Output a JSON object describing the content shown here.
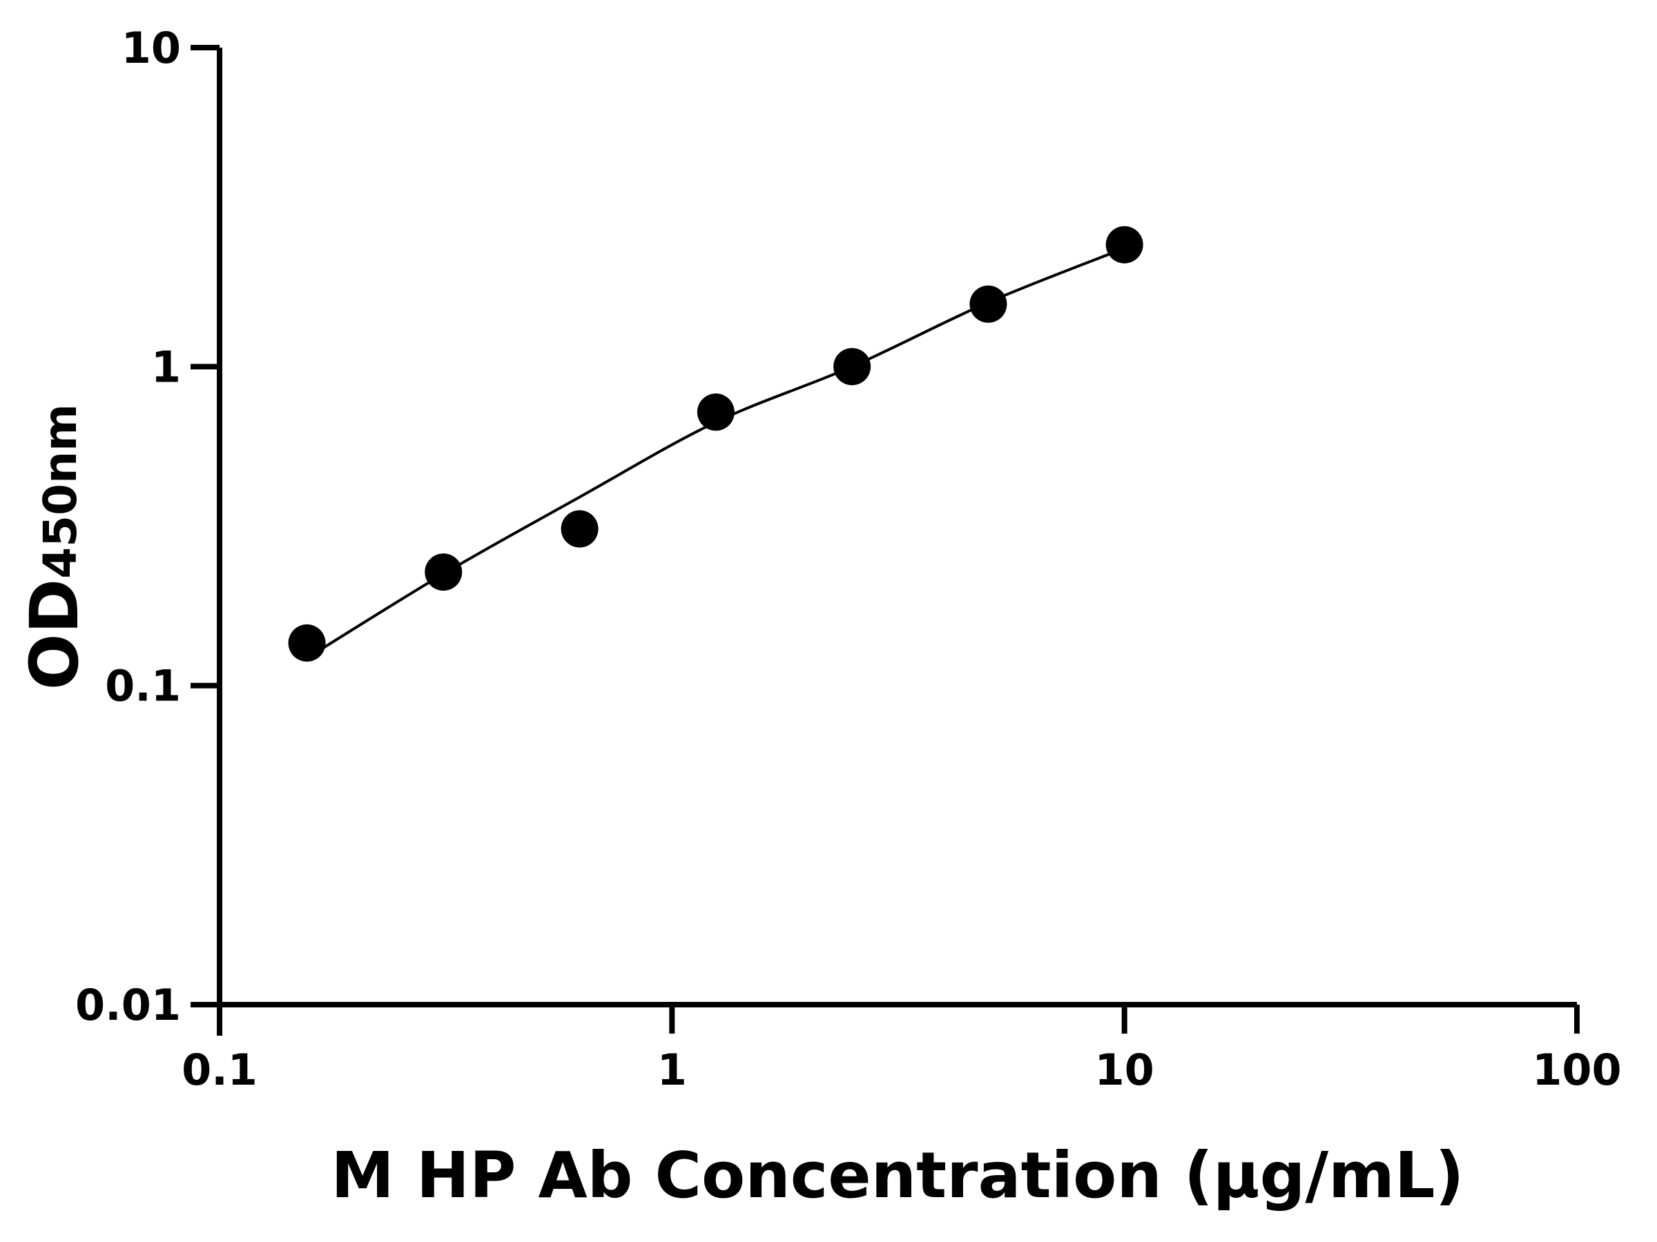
{
  "chart_data": {
    "type": "scatter",
    "title": "",
    "xlabel": "M HP Ab Concentration (µg/mL)",
    "ylabel_main": "OD",
    "ylabel_sub": "450nm",
    "x_scale": "log",
    "y_scale": "log",
    "xlim": [
      0.1,
      100
    ],
    "ylim": [
      0.01,
      10
    ],
    "x_ticks": [
      "0.1",
      "1",
      "10",
      "100"
    ],
    "y_ticks": [
      "0.01",
      "0.1",
      "1",
      "10"
    ],
    "grid": false,
    "legend": "none",
    "color": "#000000",
    "points": {
      "x": [
        0.156,
        0.3125,
        0.625,
        1.25,
        2.5,
        5,
        10
      ],
      "y": [
        0.136,
        0.227,
        0.31,
        0.72,
        1.0,
        1.57,
        2.41
      ]
    },
    "fit_curve": {
      "x": [
        0.156,
        0.3125,
        0.625,
        1.25,
        2.5,
        5,
        10
      ],
      "y": [
        0.122,
        0.224,
        0.39,
        0.67,
        1.0,
        1.59,
        2.35
      ]
    }
  }
}
